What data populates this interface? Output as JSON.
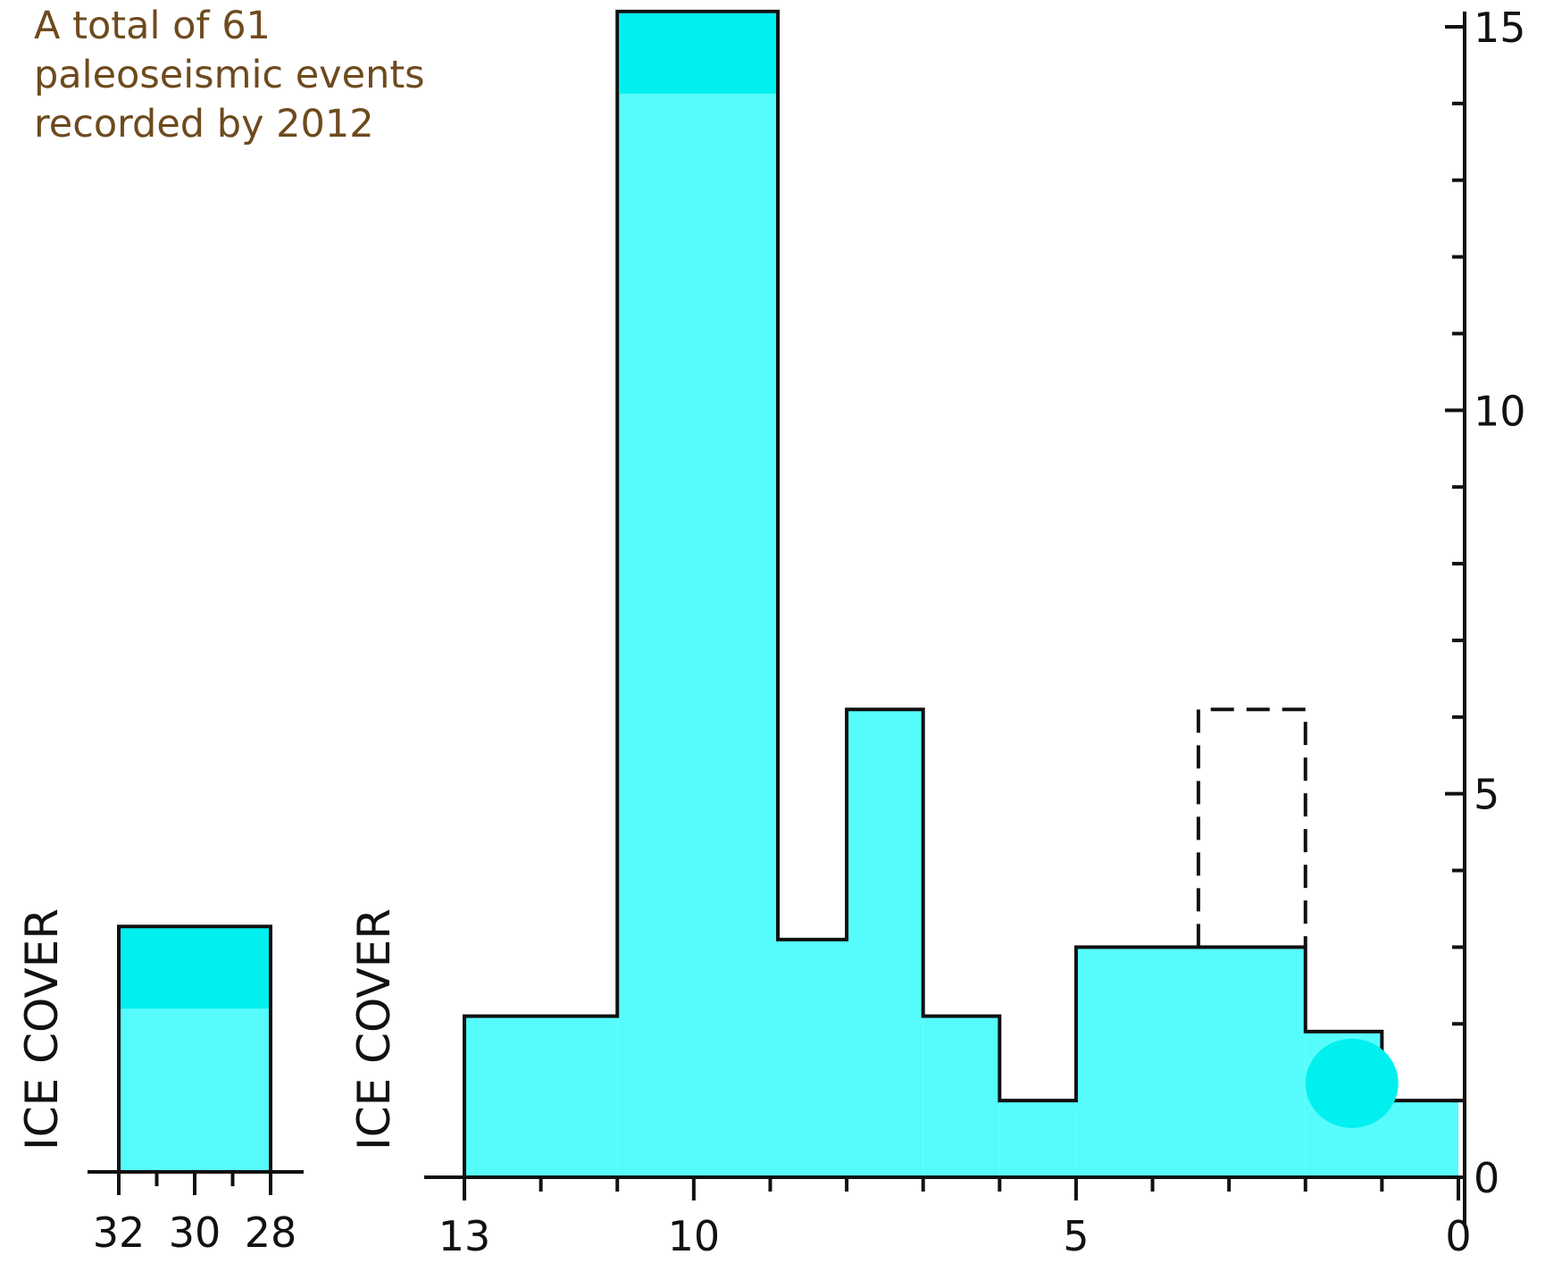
{
  "annotation": [
    "A total of 61",
    "paleoseismic events",
    "recorded by 2012"
  ],
  "colors": {
    "fill": "#56fcfc",
    "highlight": "#00efef",
    "line": "#111111"
  },
  "chart_data": [
    {
      "type": "bar",
      "panel": "left",
      "label": "ICE COVER",
      "x_tick_labels": [
        "32",
        "30",
        "28"
      ],
      "xlim": [
        32,
        28
      ],
      "ylim": [
        0,
        15
      ],
      "bars": [
        {
          "x0": 32,
          "x1": 28,
          "value": 3.2
        }
      ]
    },
    {
      "type": "bar",
      "panel": "main",
      "label": "ICE COVER",
      "x_tick_labels": [
        "13",
        "10",
        "5",
        "0"
      ],
      "y_tick_labels": [
        "15",
        "10",
        "5",
        "0"
      ],
      "xlim": [
        13,
        0
      ],
      "ylim": [
        0,
        15
      ],
      "bars": [
        {
          "x0": 13,
          "x1": 11,
          "value": 2.1
        },
        {
          "x0": 11,
          "x1": 8.9,
          "value": 15.2
        },
        {
          "x0": 8.9,
          "x1": 8,
          "value": 3.1
        },
        {
          "x0": 8,
          "x1": 7,
          "value": 6.1
        },
        {
          "x0": 7,
          "x1": 6,
          "value": 2.1
        },
        {
          "x0": 6,
          "x1": 5,
          "value": 1.0
        },
        {
          "x0": 5,
          "x1": 2,
          "value": 3.0
        },
        {
          "x0": 2,
          "x1": 1,
          "value": 1.9
        },
        {
          "x0": 1,
          "x1": 0,
          "value": 1.0
        }
      ],
      "dashed_bars": [
        {
          "x0": 3.4,
          "x1": 2,
          "value": 6.1
        }
      ]
    }
  ]
}
